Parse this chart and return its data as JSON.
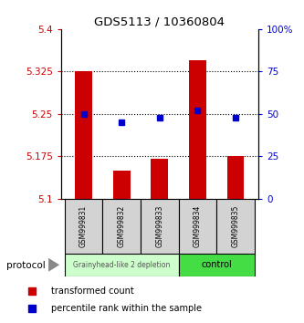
{
  "title": "GDS5113 / 10360804",
  "samples": [
    "GSM999831",
    "GSM999832",
    "GSM999833",
    "GSM999834",
    "GSM999835"
  ],
  "bar_values": [
    5.325,
    5.15,
    5.17,
    5.345,
    5.175
  ],
  "bar_base": 5.1,
  "percentile_values": [
    50,
    45,
    48,
    52,
    48
  ],
  "ylim_left": [
    5.1,
    5.4
  ],
  "ylim_right": [
    0,
    100
  ],
  "left_ticks": [
    5.1,
    5.175,
    5.25,
    5.325,
    5.4
  ],
  "right_ticks": [
    0,
    25,
    50,
    75,
    100
  ],
  "right_tick_labels": [
    "0",
    "25",
    "50",
    "75",
    "100%"
  ],
  "bar_color": "#cc0000",
  "percentile_color": "#0000cc",
  "group1_label": "Grainyhead-like 2 depletion",
  "group2_label": "control",
  "group1_color": "#ccffcc",
  "group2_color": "#44dd44",
  "protocol_label": "protocol",
  "legend_bar_label": "transformed count",
  "legend_pct_label": "percentile rank within the sample",
  "left_tick_color": "#cc0000",
  "right_tick_color": "#0000cc",
  "dotted_lines": [
    5.175,
    5.25,
    5.325
  ]
}
